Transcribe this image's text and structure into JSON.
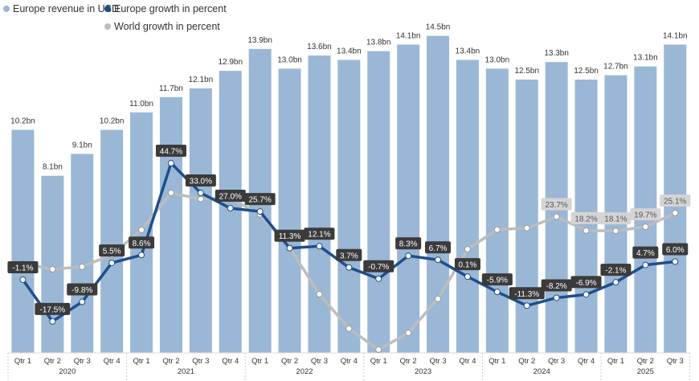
{
  "chart_data": {
    "type": "bar",
    "title": "",
    "xlabel": "",
    "ylabel": "",
    "legend_position": "top-left",
    "grid": false,
    "categories": [
      "Qtr 1",
      "Qtr 2",
      "Qtr 3",
      "Qtr 4",
      "Qtr 1",
      "Qtr 2",
      "Qtr 3",
      "Qtr 4",
      "Qtr 1",
      "Qtr 2",
      "Qtr 3",
      "Qtr 4",
      "Qtr 1",
      "Qtr 2",
      "Qtr 3",
      "Qtr 4",
      "Qtr 1",
      "Qtr 2",
      "Qtr 3",
      "Qtr 4",
      "Qtr 1",
      "Qtr 2",
      "Qtr 3"
    ],
    "years": [
      {
        "label": "2020",
        "count": 4
      },
      {
        "label": "2021",
        "count": 4
      },
      {
        "label": "2022",
        "count": 4
      },
      {
        "label": "2023",
        "count": 4
      },
      {
        "label": "2024",
        "count": 4
      },
      {
        "label": "2025",
        "count": 3
      }
    ],
    "series": [
      {
        "name": "Europe revenue in USD",
        "type": "bar",
        "color": "#9ab7d6",
        "unit": "bn",
        "values": [
          10.2,
          8.1,
          9.1,
          10.2,
          11.0,
          11.7,
          12.1,
          12.9,
          13.9,
          13.0,
          13.6,
          13.4,
          13.8,
          14.1,
          14.5,
          13.4,
          13.0,
          12.5,
          13.3,
          12.5,
          12.7,
          13.1,
          14.1
        ],
        "labels": [
          "10.2bn",
          "8.1bn",
          "9.1bn",
          "10.2bn",
          "11.0bn",
          "11.7bn",
          "12.1bn",
          "12.9bn",
          "13.9bn",
          "13.0bn",
          "13.6bn",
          "13.4bn",
          "13.8bn",
          "14.1bn",
          "14.5bn",
          "13.4bn",
          "13.0bn",
          "12.5bn",
          "13.3bn",
          "12.5bn",
          "12.7bn",
          "13.1bn",
          "14.1bn"
        ]
      },
      {
        "name": "Europe growth in percent",
        "type": "line",
        "color": "#1f4e8c",
        "values": [
          -1.1,
          -17.5,
          -9.8,
          5.5,
          8.6,
          44.7,
          33.0,
          27.0,
          25.7,
          11.3,
          12.1,
          3.7,
          -0.7,
          8.3,
          6.7,
          0.1,
          -5.9,
          -11.3,
          -8.2,
          -6.9,
          -2.1,
          4.7,
          6.0
        ],
        "labels": [
          "-1.1%",
          "-17.5%",
          "-9.8%",
          "5.5%",
          "8.6%",
          "44.7%",
          "33.0%",
          "27.0%",
          "25.7%",
          "11.3%",
          "12.1%",
          "3.7%",
          "-0.7%",
          "8.3%",
          "6.7%",
          "0.1%",
          "-5.9%",
          "-11.3%",
          "-8.2%",
          "-6.9%",
          "-2.1%",
          "4.7%",
          "6.0%"
        ]
      },
      {
        "name": "World growth in percent",
        "type": "line",
        "color": "#bdbdbd",
        "values": [
          5.3,
          3.0,
          4.0,
          8.7,
          18.5,
          33.0,
          30.6,
          30.9,
          24.6,
          11.5,
          -6.8,
          -20.3,
          -28.6,
          -22.0,
          -8.6,
          10.9,
          18.6,
          19.2,
          23.7,
          18.2,
          18.1,
          19.7,
          25.1
        ],
        "labels": [
          null,
          null,
          null,
          null,
          null,
          null,
          null,
          null,
          null,
          null,
          null,
          null,
          null,
          null,
          null,
          null,
          null,
          null,
          "23.7%",
          "18.2%",
          "18.1%",
          "19.7%",
          "25.1%"
        ]
      }
    ]
  }
}
